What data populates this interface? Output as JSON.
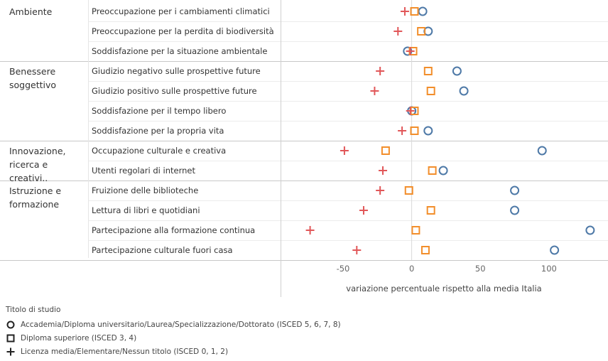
{
  "chart_data": {
    "type": "scatter",
    "xlabel": "variazione percentuale rispetto alla media Italia",
    "xlim": [
      -95,
      143
    ],
    "xticks": [
      -50,
      0,
      50,
      100
    ],
    "grid": "horizontal row lines",
    "legend_position": "bottom-left",
    "legend_title": "Titolo di studio",
    "groups": [
      {
        "name": "Ambiente",
        "lines": [
          "Ambiente"
        ],
        "rows": [
          0,
          2
        ]
      },
      {
        "name": "Benessere soggettivo",
        "lines": [
          "Benessere",
          "soggettivo"
        ],
        "rows": [
          3,
          6
        ]
      },
      {
        "name": "Innovazione, ricerca e creativi..",
        "lines": [
          "Innovazione,",
          "ricerca e",
          "creativi.."
        ],
        "rows": [
          7,
          8
        ]
      },
      {
        "name": "Istruzione e formazione",
        "lines": [
          "Istruzione e",
          "formazione"
        ],
        "rows": [
          9,
          12
        ]
      }
    ],
    "categories": [
      "Preoccupazione per i cambiamenti climatici",
      "Preoccupazione per la perdita di biodiversità",
      "Soddisfazione per la situazione ambientale",
      "Giudizio negativo sulle prospettive future",
      "Giudizio positivo sulle prospettive future",
      "Soddisfazione per il tempo libero",
      "Soddisfazione per la propria vita",
      "Occupazione culturale e creativa",
      "Utenti regolari di internet",
      "Fruizione delle biblioteche",
      "Lettura di libri e quotidiani",
      "Partecipazione alla formazione continua",
      "Partecipazione culturale fuori casa"
    ],
    "series": [
      {
        "name": "Accademia/Diploma universitario/Laurea/Specializzazione/Dottorato (ISCED 5, 6, 7, 8)",
        "marker": "circle",
        "color": "#4e79a7",
        "values": [
          8,
          12,
          -3,
          33,
          38,
          0,
          12,
          95,
          23,
          75,
          75,
          130,
          104
        ]
      },
      {
        "name": "Diploma superiore (ISCED 3, 4)",
        "marker": "square",
        "color": "#f28e2b",
        "values": [
          2,
          7,
          1,
          12,
          14,
          2,
          2,
          -19,
          15,
          -2,
          14,
          3,
          10
        ]
      },
      {
        "name": "Licenza media/Elementare/Nessun titolo (ISCED 0, 1, 2)",
        "marker": "plus",
        "color": "#e15759",
        "values": [
          -5,
          -10,
          -1,
          -23,
          -27,
          -1,
          -7,
          -49,
          -21,
          -23,
          -35,
          -74,
          -40
        ]
      }
    ]
  }
}
